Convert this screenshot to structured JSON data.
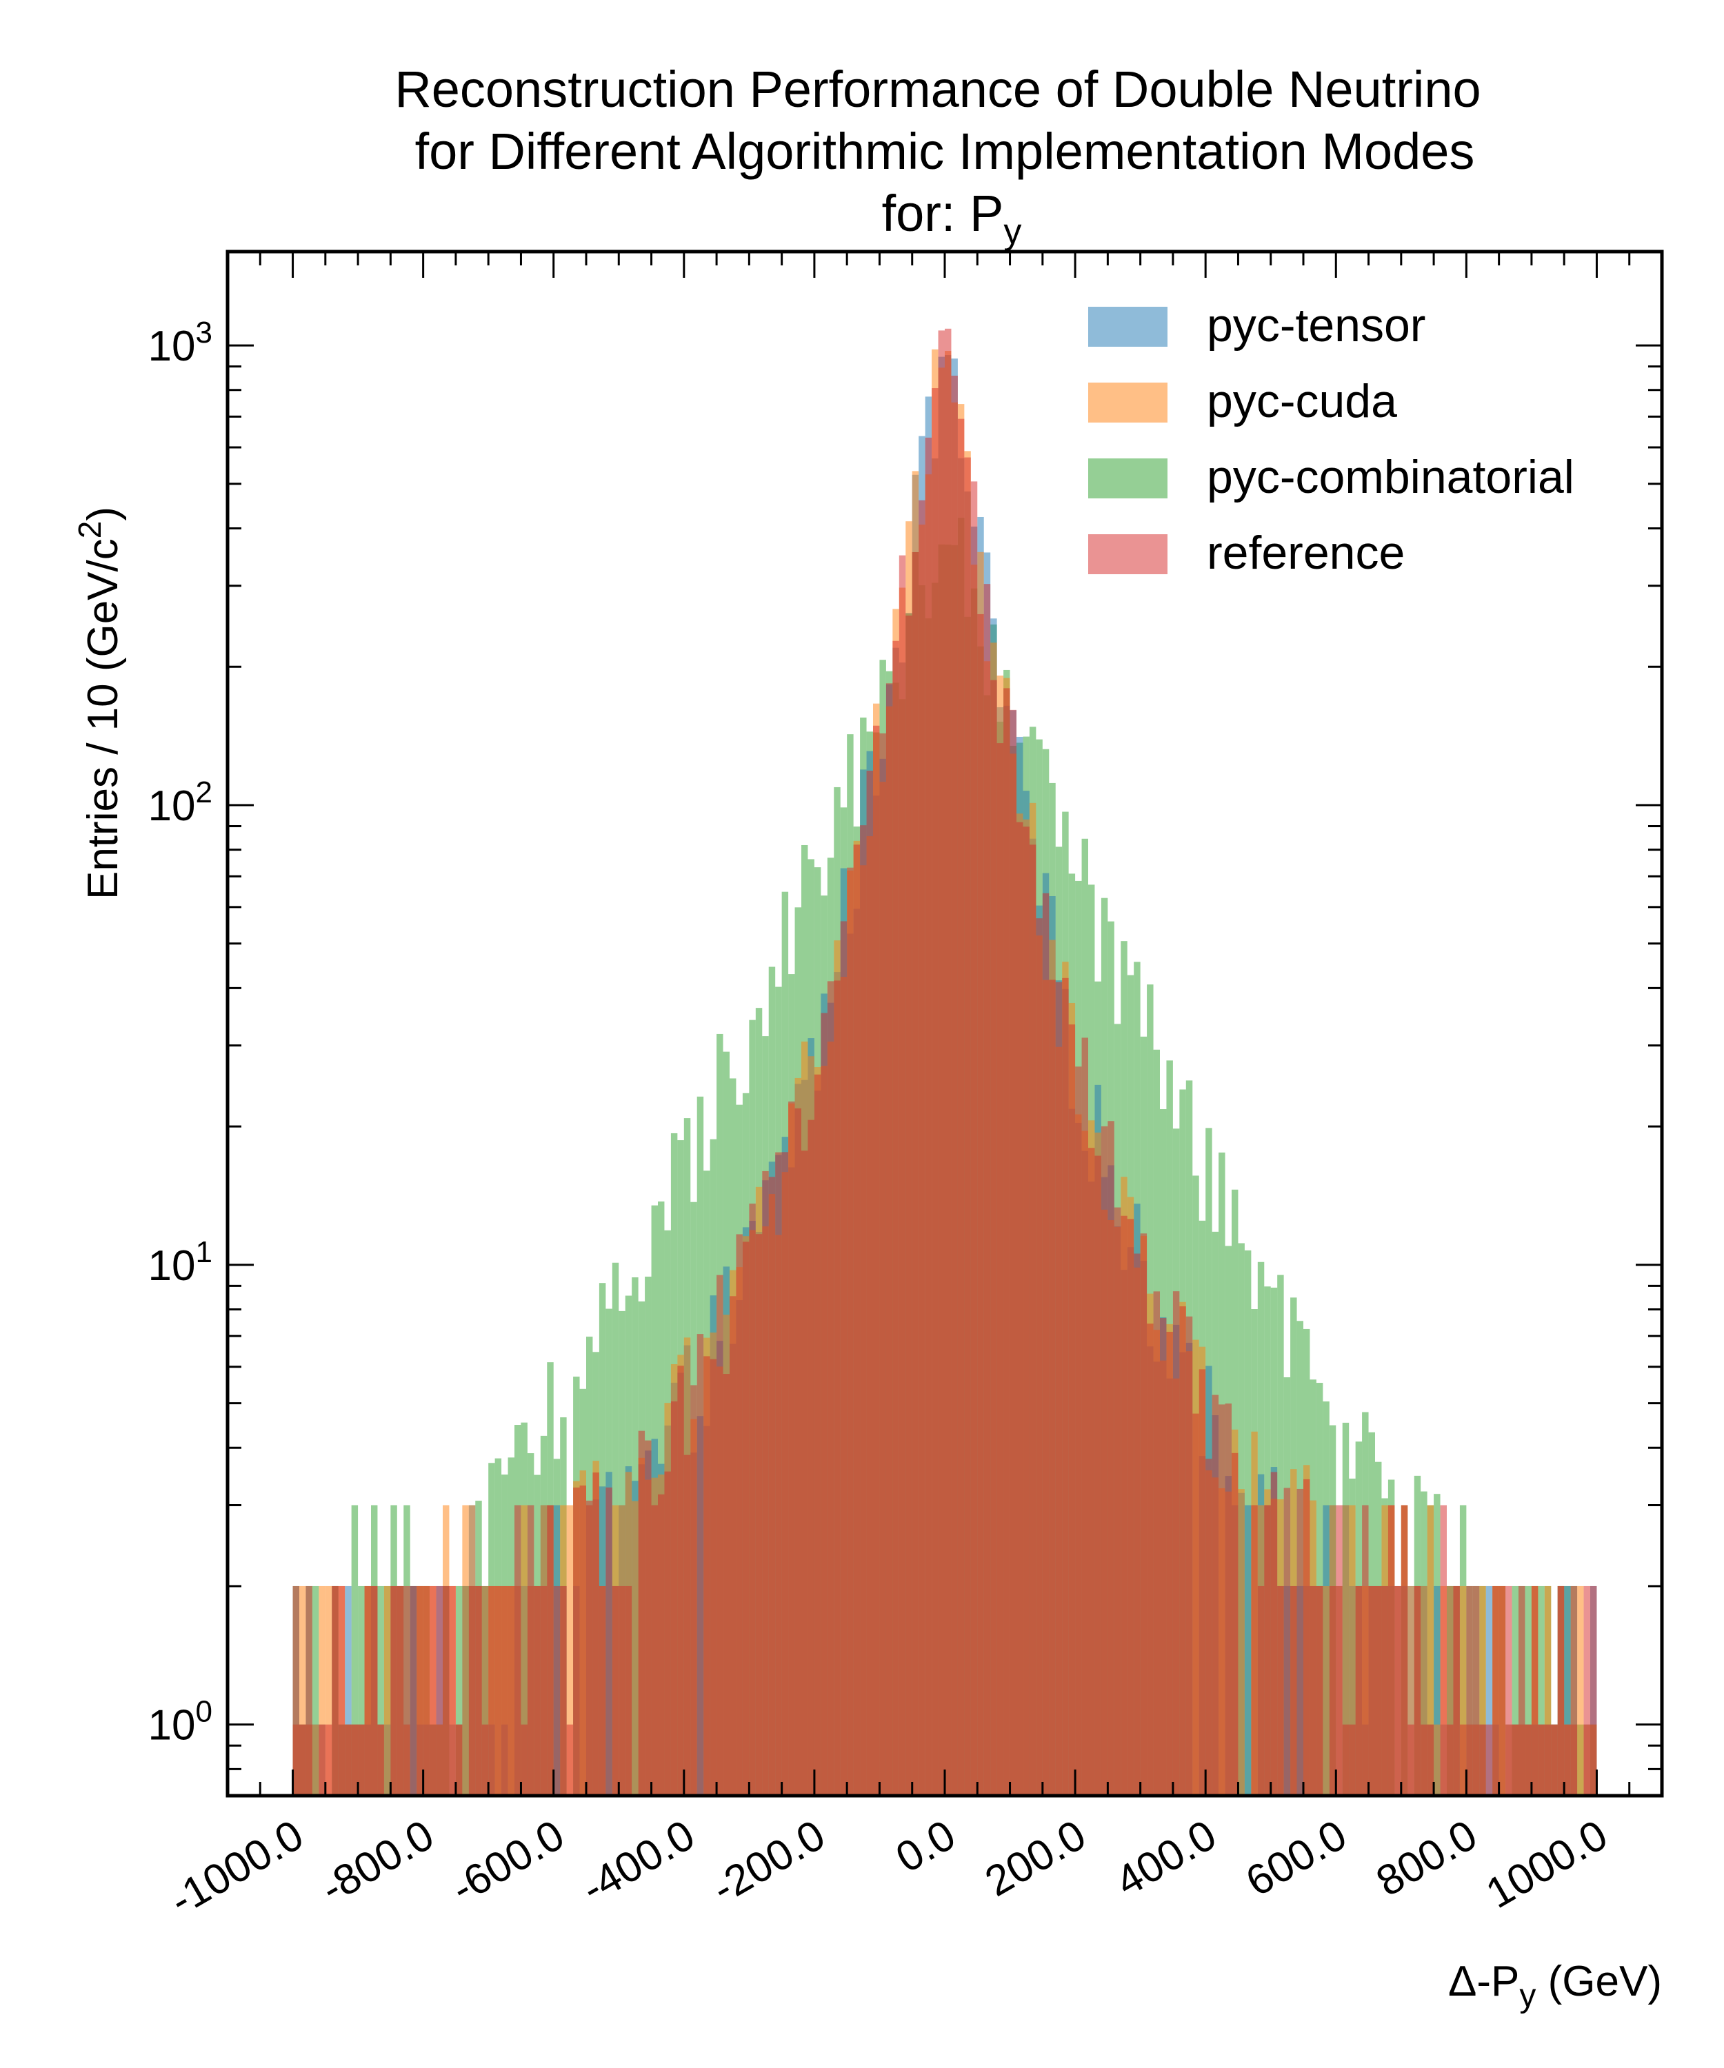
{
  "chart_data": {
    "type": "histogram",
    "title_lines": [
      "Reconstruction Performance of Double Neutrino",
      "for Different Algorithmic Implementation Modes",
      "for: P"
    ],
    "title_subscript": "y",
    "xlabel": "Δ-P",
    "xlabel_subscript": "y",
    "xlabel_suffix": " (GeV)",
    "ylabel": "Entries  / 10 (GeV/c",
    "ylabel_superscript": "2",
    "ylabel_suffix": ")",
    "x_range": [
      -1100,
      1100
    ],
    "y_range": [
      0.7,
      1600
    ],
    "y_scale": "log",
    "grid": false,
    "legend_position": "top-right",
    "x_ticks": [
      {
        "value": -1000,
        "label": "-1000.0"
      },
      {
        "value": -800,
        "label": "-800.0"
      },
      {
        "value": -600,
        "label": "-600.0"
      },
      {
        "value": -400,
        "label": "-400.0"
      },
      {
        "value": -200,
        "label": "-200.0"
      },
      {
        "value": 0,
        "label": "0.0"
      },
      {
        "value": 200,
        "label": "200.0"
      },
      {
        "value": 400,
        "label": "400.0"
      },
      {
        "value": 600,
        "label": "600.0"
      },
      {
        "value": 800,
        "label": "800.0"
      },
      {
        "value": 1000,
        "label": "1000.0"
      }
    ],
    "y_ticks": [
      {
        "value": 1,
        "base": "10",
        "exp": "0"
      },
      {
        "value": 10,
        "base": "10",
        "exp": "1"
      },
      {
        "value": 100,
        "base": "10",
        "exp": "2"
      },
      {
        "value": 1000,
        "base": "10",
        "exp": "3"
      }
    ],
    "series": [
      {
        "name": "pyc-tensor",
        "color": "#1f77b4",
        "peak": 1000,
        "shape": [
          [
            -1000,
            1.2
          ],
          [
            -600,
            2.2
          ],
          [
            -450,
            3.5
          ],
          [
            -300,
            10
          ],
          [
            -200,
            28
          ],
          [
            -100,
            140
          ],
          [
            0,
            1000
          ],
          [
            100,
            140
          ],
          [
            200,
            28
          ],
          [
            300,
            10
          ],
          [
            450,
            3.5
          ],
          [
            600,
            2.2
          ],
          [
            1000,
            1.2
          ]
        ]
      },
      {
        "name": "pyc-cuda",
        "color": "#ff7f0e",
        "peak": 1050,
        "shape": [
          [
            -1000,
            1.3
          ],
          [
            -600,
            2.5
          ],
          [
            -450,
            3.8
          ],
          [
            -300,
            10
          ],
          [
            -200,
            28
          ],
          [
            -100,
            140
          ],
          [
            0,
            1050
          ],
          [
            100,
            140
          ],
          [
            200,
            28
          ],
          [
            300,
            10
          ],
          [
            450,
            3.8
          ],
          [
            600,
            2.5
          ],
          [
            1000,
            1.3
          ]
        ]
      },
      {
        "name": "pyc-combinatorial",
        "color": "#2ca02c",
        "peak": 420,
        "shape": [
          [
            -1000,
            1.3
          ],
          [
            -700,
            3
          ],
          [
            -500,
            8
          ],
          [
            -300,
            35
          ],
          [
            -200,
            75
          ],
          [
            -100,
            170
          ],
          [
            0,
            420
          ],
          [
            100,
            170
          ],
          [
            200,
            75
          ],
          [
            300,
            35
          ],
          [
            500,
            8
          ],
          [
            700,
            3
          ],
          [
            1000,
            1.3
          ]
        ]
      },
      {
        "name": "reference",
        "color": "#d62728",
        "peak": 1100,
        "shape": [
          [
            -1000,
            1.2
          ],
          [
            -600,
            2.3
          ],
          [
            -450,
            3.6
          ],
          [
            -300,
            10
          ],
          [
            -200,
            28
          ],
          [
            -100,
            140
          ],
          [
            0,
            1100
          ],
          [
            100,
            140
          ],
          [
            200,
            28
          ],
          [
            300,
            10
          ],
          [
            450,
            3.6
          ],
          [
            600,
            2.3
          ],
          [
            1000,
            1.2
          ]
        ]
      }
    ]
  }
}
